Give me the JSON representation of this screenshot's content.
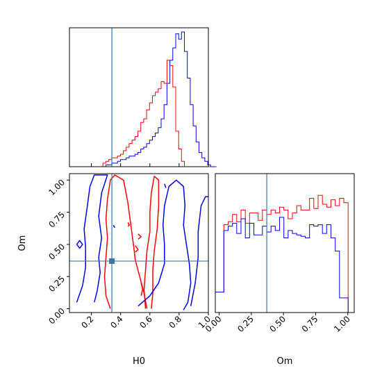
{
  "chart_data": [
    {
      "id": "h0-marginal",
      "type": "histogram",
      "xlim": [
        0.05,
        1.0
      ],
      "x_param": "H0",
      "truth": 0.34,
      "bins": {
        "start": 0.1,
        "width": 0.0199
      },
      "series": [
        {
          "color": "#ff0000",
          "values": [
            0,
            0,
            0,
            0,
            0,
            0,
            0,
            0,
            0,
            2,
            3,
            4,
            5,
            5,
            6,
            7,
            9,
            11,
            13,
            15,
            17,
            20,
            25,
            27,
            32,
            36,
            40,
            42,
            44,
            48,
            47,
            60,
            57,
            45,
            20,
            10,
            3,
            0,
            0,
            0,
            0,
            0,
            0,
            0,
            0,
            0,
            0,
            0
          ]
        },
        {
          "color": "#0000ee",
          "values": [
            0,
            0,
            0,
            0,
            0,
            0,
            0,
            0,
            0,
            0,
            1,
            1,
            2,
            2,
            3,
            4,
            4,
            5,
            6,
            6,
            7,
            8,
            10,
            11,
            13,
            15,
            17,
            19,
            22,
            27,
            35,
            47,
            60,
            67,
            75,
            72,
            76,
            65,
            50,
            35,
            23,
            14,
            8,
            5,
            3,
            1,
            0,
            0
          ]
        }
      ]
    },
    {
      "id": "om-marginal",
      "type": "histogram",
      "xlim": [
        -0.03,
        1.05
      ],
      "x_param": "Om",
      "truth": 0.37,
      "bins": {
        "start": -0.03,
        "width": 0.0333
      },
      "series": [
        {
          "color": "#ff0000",
          "values": [
            14,
            14,
            60,
            62,
            67,
            62,
            70,
            61,
            68,
            68,
            63,
            70,
            67,
            70,
            68,
            72,
            70,
            64,
            68,
            73,
            70,
            70,
            78,
            71,
            80,
            74,
            72,
            77,
            73,
            78,
            75
          ]
        },
        {
          "color": "#0000ee",
          "values": [
            14,
            14,
            56,
            59,
            61,
            54,
            64,
            51,
            61,
            53,
            53,
            59,
            55,
            59,
            56,
            65,
            51,
            56,
            54,
            53,
            52,
            51,
            60,
            59,
            60,
            54,
            60,
            51,
            42,
            10,
            10
          ]
        }
      ]
    },
    {
      "id": "joint",
      "type": "contour",
      "xlim": [
        0.05,
        1.0
      ],
      "ylim": [
        -0.03,
        1.05
      ],
      "xlabel": "H0",
      "ylabel": "Om",
      "truth": {
        "x": 0.34,
        "y": 0.37
      },
      "series": [
        {
          "color": "#ff0000",
          "level": "outer",
          "points": [
            [
              0.33,
              0.0
            ],
            [
              0.3,
              0.1
            ],
            [
              0.29,
              0.25
            ],
            [
              0.3,
              0.4
            ],
            [
              0.31,
              0.55
            ],
            [
              0.3,
              0.7
            ],
            [
              0.31,
              0.85
            ],
            [
              0.33,
              1.0
            ],
            [
              0.36,
              1.04
            ],
            [
              0.42,
              1.0
            ],
            [
              0.45,
              0.82
            ],
            [
              0.47,
              0.65
            ],
            [
              0.49,
              0.48
            ],
            [
              0.5,
              0.38
            ],
            [
              0.53,
              0.25
            ],
            [
              0.56,
              0.12
            ],
            [
              0.58,
              0.0
            ]
          ]
        },
        {
          "color": "#ff0000",
          "level": "inner",
          "points": [
            [
              0.57,
              0.0
            ],
            [
              0.56,
              0.15
            ],
            [
              0.57,
              0.3
            ],
            [
              0.58,
              0.45
            ],
            [
              0.6,
              0.6
            ],
            [
              0.6,
              0.75
            ],
            [
              0.61,
              0.9
            ],
            [
              0.63,
              1.03
            ],
            [
              0.66,
              1.0
            ],
            [
              0.66,
              0.8
            ],
            [
              0.65,
              0.62
            ],
            [
              0.63,
              0.45
            ],
            [
              0.62,
              0.3
            ],
            [
              0.62,
              0.12
            ],
            [
              0.61,
              0.0
            ]
          ]
        },
        {
          "color": "#ff0000",
          "level": "island",
          "points": [
            [
              0.45,
              0.67
            ],
            [
              0.46,
              0.65
            ],
            [
              0.45,
              0.64
            ]
          ]
        },
        {
          "color": "#ff0000",
          "level": "island",
          "points": [
            [
              0.52,
              0.58
            ],
            [
              0.54,
              0.56
            ],
            [
              0.52,
              0.54
            ]
          ]
        },
        {
          "color": "#ff0000",
          "level": "island",
          "points": [
            [
              0.5,
              0.49
            ],
            [
              0.52,
              0.46
            ],
            [
              0.5,
              0.44
            ]
          ]
        },
        {
          "color": "#ff0000",
          "level": "island",
          "points": [
            [
              0.54,
              0.2
            ],
            [
              0.55,
              0.15
            ],
            [
              0.54,
              0.1
            ]
          ]
        },
        {
          "color": "#0000ee",
          "level": "outer",
          "points": [
            [
              0.1,
              0.05
            ],
            [
              0.14,
              0.18
            ],
            [
              0.16,
              0.32
            ],
            [
              0.16,
              0.48
            ],
            [
              0.15,
              0.62
            ],
            [
              0.17,
              0.78
            ],
            [
              0.19,
              0.95
            ],
            [
              0.22,
              1.04
            ],
            [
              0.31,
              1.04
            ],
            [
              0.27,
              0.9
            ],
            [
              0.25,
              0.72
            ],
            [
              0.27,
              0.55
            ],
            [
              0.25,
              0.4
            ],
            [
              0.26,
              0.28
            ],
            [
              0.24,
              0.14
            ],
            [
              0.22,
              0.05
            ]
          ]
        },
        {
          "color": "#0000ee",
          "level": "outer-right",
          "points": [
            [
              0.52,
              0.02
            ],
            [
              0.6,
              0.1
            ],
            [
              0.66,
              0.2
            ],
            [
              0.7,
              0.35
            ],
            [
              0.7,
              0.5
            ],
            [
              0.69,
              0.65
            ],
            [
              0.7,
              0.8
            ],
            [
              0.73,
              0.95
            ],
            [
              0.78,
              1.0
            ],
            [
              0.83,
              0.95
            ],
            [
              0.84,
              0.8
            ],
            [
              0.83,
              0.65
            ],
            [
              0.85,
              0.5
            ],
            [
              0.87,
              0.35
            ],
            [
              0.88,
              0.2
            ],
            [
              0.86,
              0.05
            ],
            [
              0.83,
              -0.01
            ]
          ]
        },
        {
          "color": "#0000ee",
          "level": "outer-edge",
          "points": [
            [
              0.88,
              0.02
            ],
            [
              0.91,
              0.2
            ],
            [
              0.93,
              0.4
            ],
            [
              0.93,
              0.6
            ],
            [
              0.95,
              0.8
            ],
            [
              0.98,
              0.87
            ],
            [
              1.0,
              0.87
            ]
          ]
        },
        {
          "color": "#0000ee",
          "level": "island",
          "points": [
            [
              0.1,
              0.5
            ],
            [
              0.12,
              0.47
            ],
            [
              0.14,
              0.5
            ],
            [
              0.12,
              0.53
            ],
            [
              0.1,
              0.5
            ]
          ]
        },
        {
          "color": "#0000ee",
          "level": "island",
          "points": [
            [
              0.35,
              0.65
            ],
            [
              0.36,
              0.63
            ]
          ]
        },
        {
          "color": "#0000ee",
          "level": "island",
          "points": [
            [
              0.7,
              0.97
            ],
            [
              0.71,
              0.94
            ]
          ]
        }
      ]
    }
  ]
}
